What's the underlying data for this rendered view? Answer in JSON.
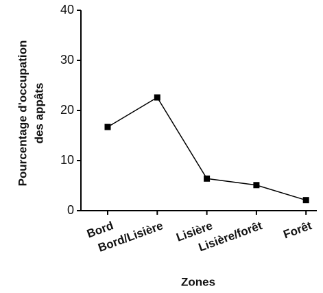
{
  "chart_data": {
    "type": "line",
    "ylabel": [
      "Pourcentage d'occupation",
      "des appâts"
    ],
    "xlabel": "Zones",
    "categories": [
      "Bord",
      "Bord/Lisière",
      "Lisière",
      "Lisière/forêt",
      "Forêt"
    ],
    "series": [
      {
        "color": "#000000",
        "values": [
          16.7,
          22.6,
          6.4,
          5.1,
          2.1
        ]
      }
    ],
    "ylim": [
      0,
      40
    ],
    "yticks": [
      0,
      10,
      20,
      30,
      40
    ]
  }
}
